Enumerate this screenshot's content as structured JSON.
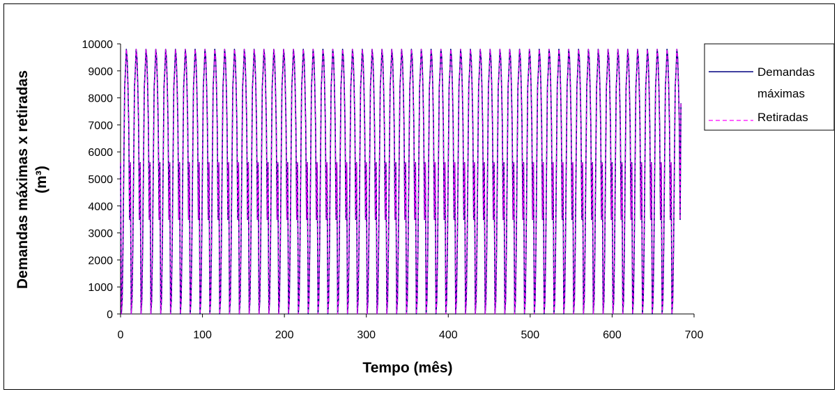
{
  "chart_data": {
    "type": "line",
    "title": "",
    "xlabel": "Tempo (mês)",
    "ylabel_line1": "Demandas máximas x retiradas",
    "ylabel_line2": "(m³)",
    "xlim": [
      0,
      700
    ],
    "ylim": [
      0,
      10000
    ],
    "x_ticks": [
      0,
      100,
      200,
      300,
      400,
      500,
      600,
      700
    ],
    "y_ticks": [
      0,
      1000,
      2000,
      3000,
      4000,
      5000,
      6000,
      7000,
      8000,
      9000,
      10000
    ],
    "x_tick_labels": [
      "0",
      "100",
      "200",
      "300",
      "400",
      "500",
      "600",
      "700"
    ],
    "y_tick_labels": [
      "0",
      "1000",
      "2000",
      "3000",
      "4000",
      "5000",
      "6000",
      "7000",
      "8000",
      "9000",
      "10000"
    ],
    "grid": false,
    "legend_position": "right",
    "colors": {
      "demandas": "#000080",
      "retiradas": "#ff00ff"
    },
    "series": [
      {
        "name": "Demandas máximas",
        "style": "solid",
        "period_months": 12,
        "cycle_values": [
          5600,
          0,
          500,
          2500,
          5500,
          8400,
          9000,
          9800,
          9500,
          8500,
          7000,
          3500
        ],
        "x_start": 0,
        "x_end": 684,
        "last_value": 7800
      },
      {
        "name": "Retiradas",
        "style": "dashed",
        "period_months": 12,
        "cycle_values": [
          5600,
          0,
          500,
          2500,
          5500,
          8400,
          9000,
          9800,
          9500,
          8500,
          7000,
          3500
        ],
        "x_start": 0,
        "x_end": 684,
        "last_value": 7800
      }
    ],
    "legend": {
      "entry1_line1": "Demandas",
      "entry1_line2": "máximas",
      "entry2": "Retiradas"
    }
  }
}
